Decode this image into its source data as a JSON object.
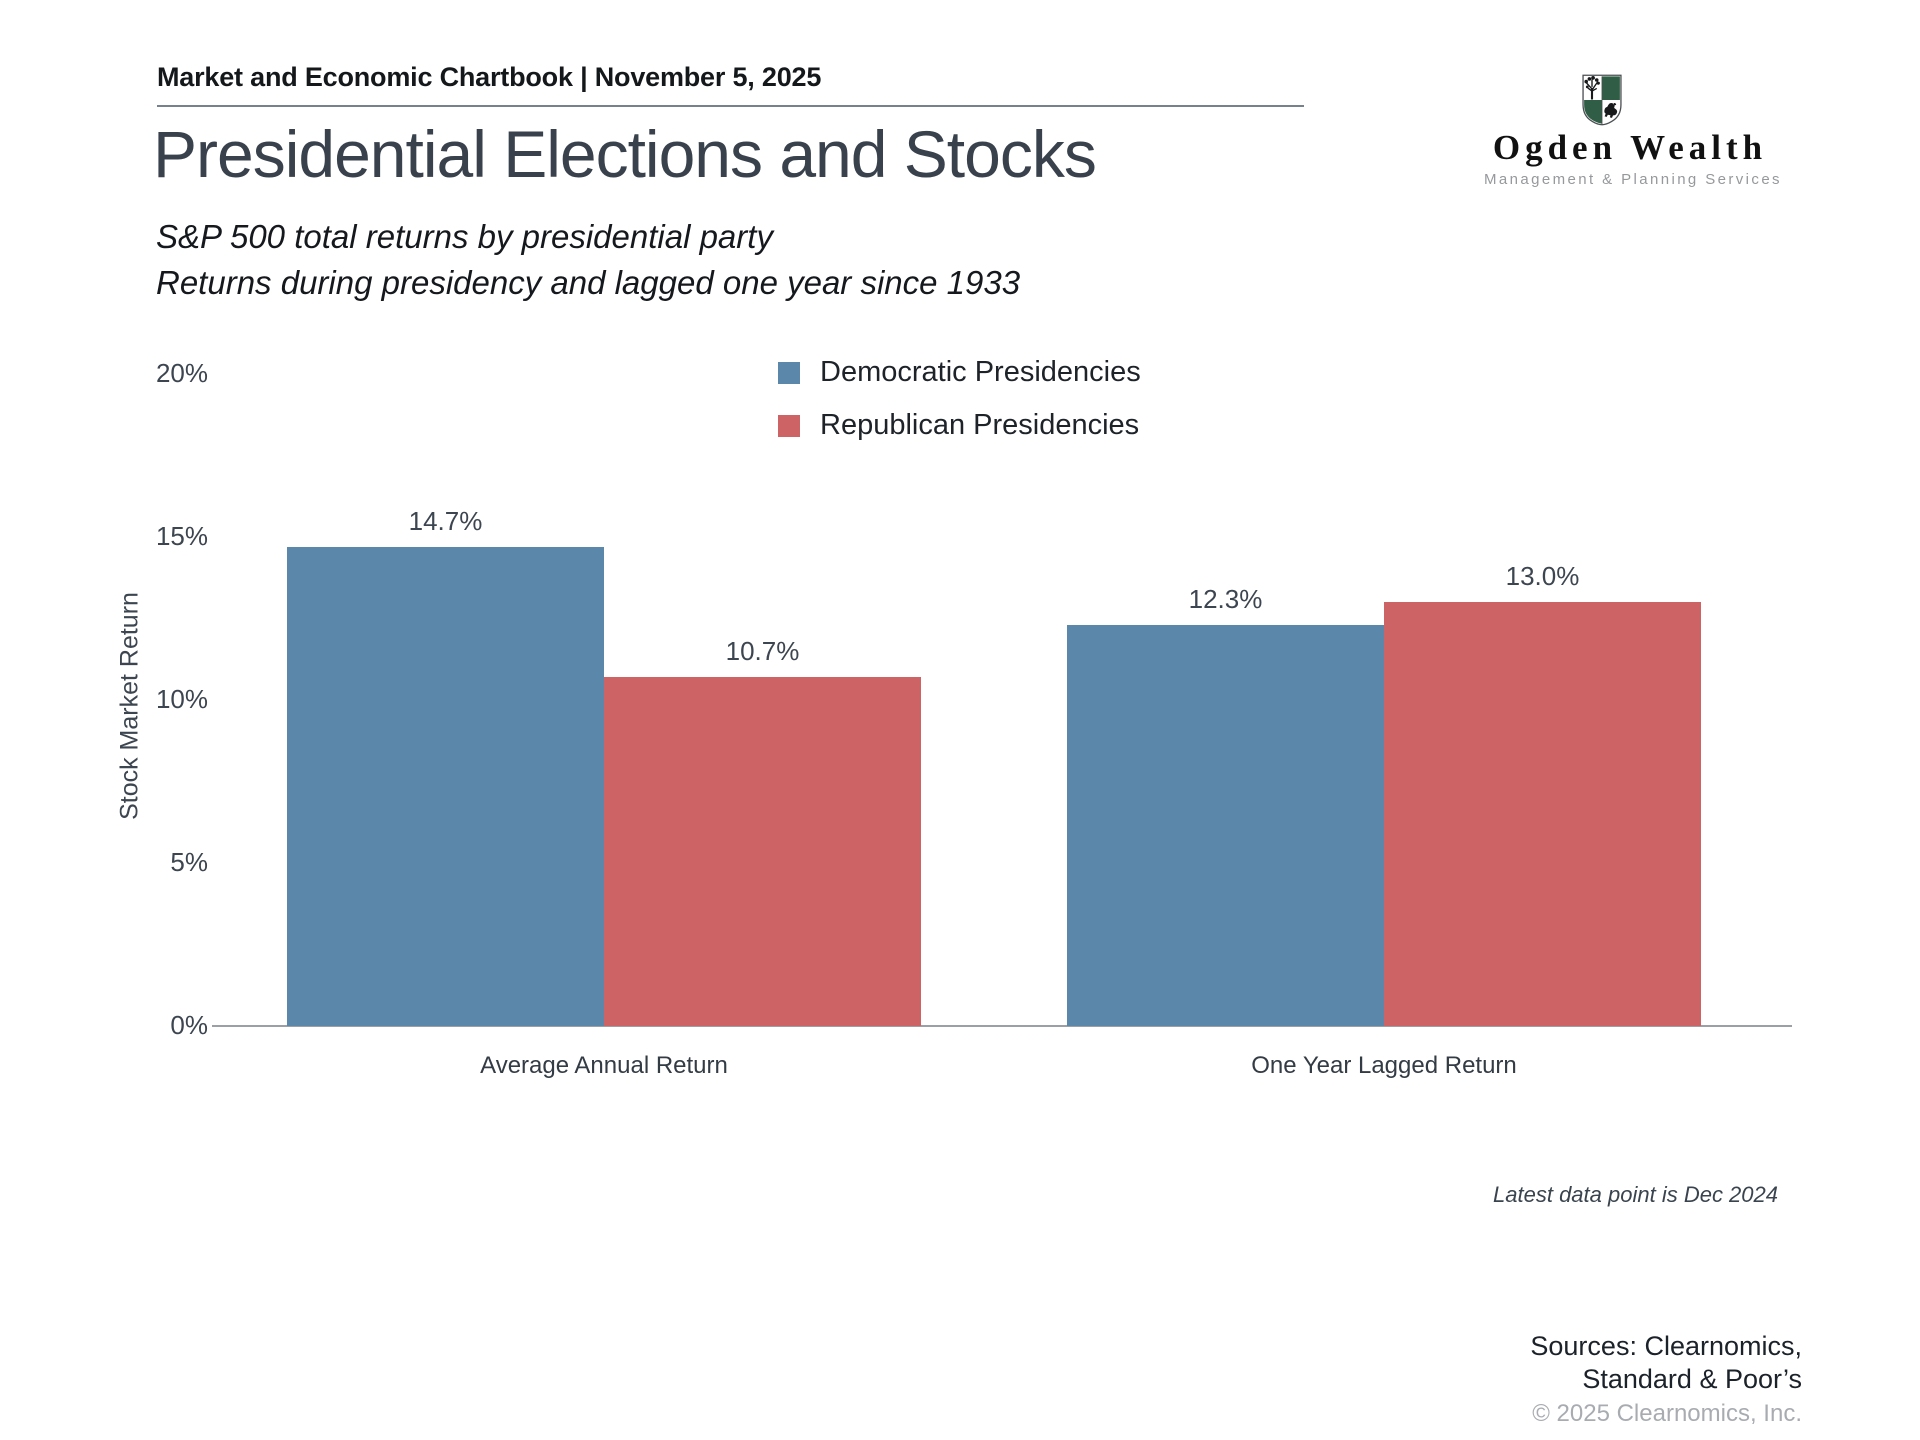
{
  "header": {
    "text": "Market and Economic Chartbook | November 5, 2025"
  },
  "title": "Presidential Elections and Stocks",
  "subtitle": {
    "line1": "S&P 500 total returns by presidential party",
    "line2": "Returns during presidency and lagged one year since 1933"
  },
  "logo": {
    "name": "Ogden Wealth",
    "tagline": "Management & Planning Services",
    "shield_green": "#2f5d45"
  },
  "chart_data": {
    "type": "bar",
    "title": "S&P 500 total returns by presidential party",
    "categories": [
      "Average Annual Return",
      "One Year Lagged Return"
    ],
    "series": [
      {
        "name": "Democratic Presidencies",
        "color": "#5b87ab",
        "values": [
          14.7,
          12.3
        ]
      },
      {
        "name": "Republican Presidencies",
        "color": "#cd6365",
        "values": [
          10.7,
          13.0
        ]
      }
    ],
    "value_labels": [
      "14.7%",
      "10.7%",
      "12.3%",
      "13.0%"
    ],
    "ylabel": "Stock Market Return",
    "xlabel": "",
    "ylim": [
      0,
      20
    ],
    "yticks": [
      "20%",
      "15%",
      "10%",
      "5%",
      "0%"
    ],
    "grid": false,
    "legend_position": "top-center"
  },
  "note": "Latest data point is Dec 2024",
  "footer": {
    "sources_line1": "Sources: Clearnomics,",
    "sources_line2": "Standard & Poor’s",
    "copyright": "© 2025 Clearnomics, Inc."
  }
}
